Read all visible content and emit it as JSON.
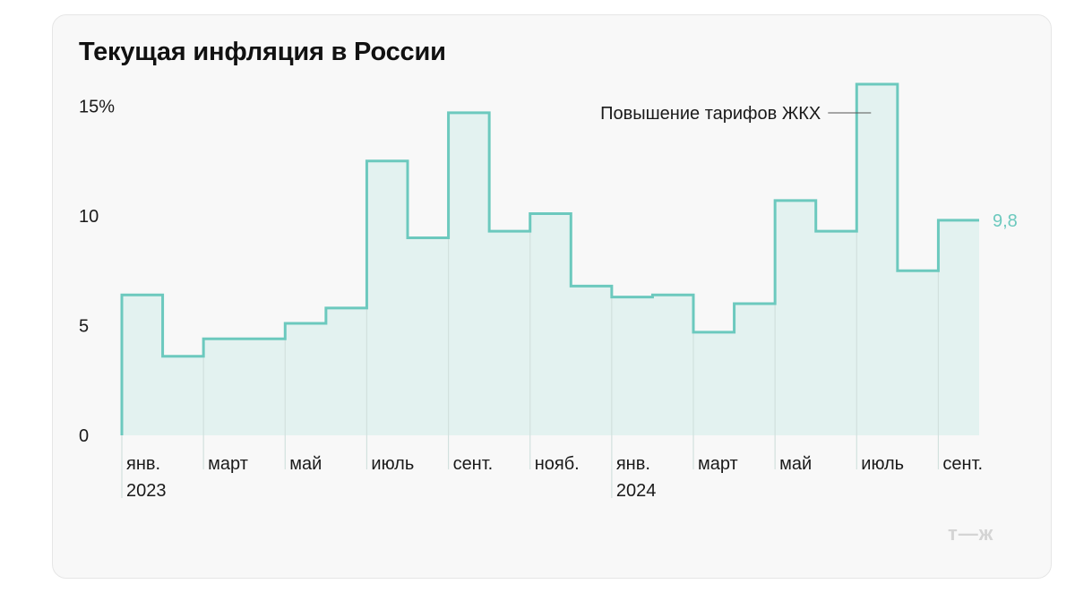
{
  "title": "Текущая инфляция в России",
  "logo": "т—ж",
  "colors": {
    "line": "#6cc9be",
    "fill": "#e3f2f0",
    "grid": "#d2e1de",
    "text": "#1a1a1a",
    "card": "#f8f8f8"
  },
  "chart_data": {
    "type": "area",
    "step": true,
    "title": "Текущая инфляция в России",
    "x": [
      "янв. 2023",
      "фев. 2023",
      "март 2023",
      "апр. 2023",
      "май 2023",
      "июнь 2023",
      "июль 2023",
      "авг. 2023",
      "сент. 2023",
      "окт. 2023",
      "нояб. 2023",
      "дек. 2023",
      "янв. 2024",
      "фев. 2024",
      "март 2024",
      "апр. 2024",
      "май 2024",
      "июнь 2024",
      "июль 2024",
      "авг. 2024",
      "сент. 2024"
    ],
    "values": [
      6.4,
      3.6,
      4.4,
      4.4,
      5.1,
      5.8,
      12.5,
      9.0,
      14.7,
      9.3,
      10.1,
      6.8,
      6.3,
      6.4,
      4.7,
      6.0,
      10.7,
      9.3,
      16.0,
      7.5,
      9.8
    ],
    "ylim": [
      0,
      16
    ],
    "y_ticks": [
      {
        "value": 0,
        "label": "0"
      },
      {
        "value": 5,
        "label": "5"
      },
      {
        "value": 10,
        "label": "10"
      },
      {
        "value": 15,
        "label": "15%"
      }
    ],
    "x_ticks": [
      {
        "index": 0,
        "line1": "янв.",
        "line2": "2023",
        "long": true
      },
      {
        "index": 2,
        "line1": "март",
        "line2": "",
        "long": false
      },
      {
        "index": 4,
        "line1": "май",
        "line2": "",
        "long": false
      },
      {
        "index": 6,
        "line1": "июль",
        "line2": "",
        "long": false
      },
      {
        "index": 8,
        "line1": "сент.",
        "line2": "",
        "long": false
      },
      {
        "index": 10,
        "line1": "нояб.",
        "line2": "",
        "long": false
      },
      {
        "index": 12,
        "line1": "янв.",
        "line2": "2024",
        "long": true
      },
      {
        "index": 14,
        "line1": "март",
        "line2": "",
        "long": false
      },
      {
        "index": 16,
        "line1": "май",
        "line2": "",
        "long": false
      },
      {
        "index": 18,
        "line1": "июль",
        "line2": "",
        "long": false
      },
      {
        "index": 20,
        "line1": "сент.",
        "line2": "",
        "long": false
      }
    ],
    "annotation": {
      "text": "Повышение тарифов ЖКХ",
      "index": 18
    },
    "last_value_label": "9,8",
    "grid": false
  }
}
